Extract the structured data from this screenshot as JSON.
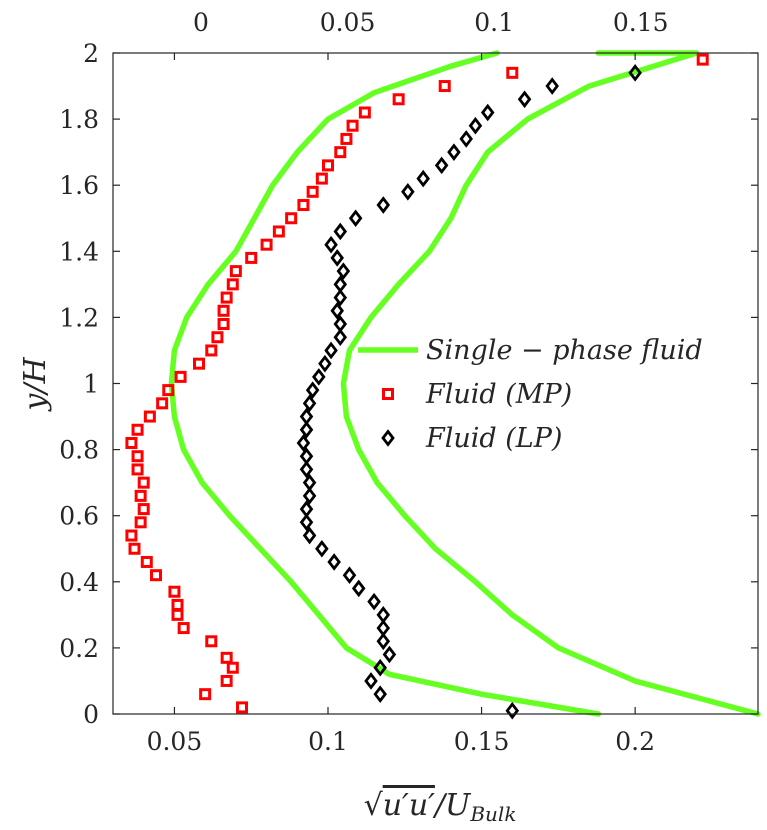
{
  "chart_data": {
    "type": "line",
    "title": "",
    "xlabel": "√(u'u')/U_Bulk",
    "xlabel_parts": {
      "sqrt": "√",
      "num": "u′u′",
      "sep": "/U",
      "sub": "Bulk"
    },
    "ylabel": "y/H",
    "xlim": [
      0.03,
      0.24
    ],
    "ylim": [
      0,
      2
    ],
    "x_ticks": [
      0.05,
      0.1,
      0.15,
      0.2
    ],
    "x_tick_labels": [
      "0.05",
      "0.1",
      "0.15",
      "0.2"
    ],
    "y_ticks": [
      0,
      0.2,
      0.4,
      0.6,
      0.8,
      1,
      1.2,
      1.4,
      1.6,
      1.8,
      2
    ],
    "y_tick_labels": [
      "0",
      "0.2",
      "0.4",
      "0.6",
      "0.8",
      "1",
      "1.2",
      "1.4",
      "1.6",
      "1.8",
      "2"
    ],
    "top_axis": {
      "xlim": [
        -0.03,
        0.19
      ],
      "ticks": [
        0,
        0.05,
        0.1,
        0.15
      ],
      "tick_labels": [
        "0",
        "0.05",
        "0.1",
        "0.15"
      ]
    },
    "legend": {
      "position": "center-right"
    },
    "series": [
      {
        "name": "Single − phase fluid",
        "label_text": "Single − phase fluid",
        "color": "#66ff22",
        "style": "line",
        "lines": [
          {
            "points": [
              [
                0.188,
                0.0
              ],
              [
                0.15,
                0.06
              ],
              [
                0.12,
                0.12
              ],
              [
                0.106,
                0.2
              ],
              [
                0.097,
                0.3
              ],
              [
                0.088,
                0.4
              ],
              [
                0.078,
                0.5
              ],
              [
                0.068,
                0.6
              ],
              [
                0.059,
                0.7
              ],
              [
                0.053,
                0.8
              ],
              [
                0.05,
                0.9
              ],
              [
                0.049,
                1.0
              ],
              [
                0.05,
                1.1
              ],
              [
                0.054,
                1.2
              ],
              [
                0.061,
                1.3
              ],
              [
                0.07,
                1.4
              ],
              [
                0.076,
                1.5
              ],
              [
                0.082,
                1.6
              ],
              [
                0.09,
                1.7
              ],
              [
                0.1,
                1.8
              ],
              [
                0.115,
                1.88
              ],
              [
                0.14,
                1.96
              ],
              [
                0.155,
                2.0
              ]
            ]
          },
          {
            "points": [
              [
                0.24,
                0.0
              ],
              [
                0.2,
                0.1
              ],
              [
                0.175,
                0.2
              ],
              [
                0.16,
                0.3
              ],
              [
                0.148,
                0.4
              ],
              [
                0.135,
                0.5
              ],
              [
                0.125,
                0.6
              ],
              [
                0.116,
                0.7
              ],
              [
                0.11,
                0.8
              ],
              [
                0.106,
                0.9
              ],
              [
                0.105,
                1.0
              ],
              [
                0.107,
                1.1
              ],
              [
                0.114,
                1.2
              ],
              [
                0.123,
                1.3
              ],
              [
                0.133,
                1.4
              ],
              [
                0.14,
                1.5
              ],
              [
                0.145,
                1.6
              ],
              [
                0.152,
                1.7
              ],
              [
                0.165,
                1.8
              ],
              [
                0.185,
                1.9
              ],
              [
                0.22,
                2.0
              ],
              [
                0.188,
                2.0
              ]
            ]
          }
        ]
      },
      {
        "name": "Fluid (MP)",
        "label_text": "Fluid (MP)",
        "color": "#ff0000",
        "style": "square",
        "points": [
          [
            0.072,
            0.02
          ],
          [
            0.06,
            0.06
          ],
          [
            0.067,
            0.1
          ],
          [
            0.069,
            0.14
          ],
          [
            0.067,
            0.17
          ],
          [
            0.062,
            0.22
          ],
          [
            0.053,
            0.26
          ],
          [
            0.051,
            0.3
          ],
          [
            0.051,
            0.33
          ],
          [
            0.05,
            0.37
          ],
          [
            0.044,
            0.42
          ],
          [
            0.041,
            0.46
          ],
          [
            0.037,
            0.5
          ],
          [
            0.036,
            0.54
          ],
          [
            0.039,
            0.58
          ],
          [
            0.04,
            0.62
          ],
          [
            0.039,
            0.66
          ],
          [
            0.04,
            0.7
          ],
          [
            0.038,
            0.74
          ],
          [
            0.038,
            0.78
          ],
          [
            0.036,
            0.82
          ],
          [
            0.038,
            0.86
          ],
          [
            0.042,
            0.9
          ],
          [
            0.046,
            0.94
          ],
          [
            0.048,
            0.98
          ],
          [
            0.052,
            1.02
          ],
          [
            0.058,
            1.06
          ],
          [
            0.062,
            1.1
          ],
          [
            0.064,
            1.14
          ],
          [
            0.066,
            1.18
          ],
          [
            0.066,
            1.22
          ],
          [
            0.067,
            1.26
          ],
          [
            0.069,
            1.3
          ],
          [
            0.07,
            1.34
          ],
          [
            0.075,
            1.38
          ],
          [
            0.08,
            1.42
          ],
          [
            0.084,
            1.46
          ],
          [
            0.088,
            1.5
          ],
          [
            0.092,
            1.54
          ],
          [
            0.095,
            1.58
          ],
          [
            0.098,
            1.62
          ],
          [
            0.1,
            1.66
          ],
          [
            0.104,
            1.7
          ],
          [
            0.106,
            1.74
          ],
          [
            0.108,
            1.78
          ],
          [
            0.112,
            1.82
          ],
          [
            0.123,
            1.86
          ],
          [
            0.138,
            1.9
          ],
          [
            0.16,
            1.94
          ],
          [
            0.222,
            1.98
          ]
        ]
      },
      {
        "name": "Fluid (LP)",
        "label_text": "Fluid (LP)",
        "color": "#000000",
        "style": "diamond",
        "points": [
          [
            0.16,
            0.01
          ],
          [
            0.117,
            0.06
          ],
          [
            0.114,
            0.1
          ],
          [
            0.117,
            0.14
          ],
          [
            0.12,
            0.18
          ],
          [
            0.118,
            0.22
          ],
          [
            0.118,
            0.26
          ],
          [
            0.118,
            0.3
          ],
          [
            0.115,
            0.34
          ],
          [
            0.11,
            0.38
          ],
          [
            0.107,
            0.42
          ],
          [
            0.102,
            0.46
          ],
          [
            0.098,
            0.5
          ],
          [
            0.094,
            0.54
          ],
          [
            0.093,
            0.58
          ],
          [
            0.093,
            0.62
          ],
          [
            0.094,
            0.66
          ],
          [
            0.094,
            0.7
          ],
          [
            0.093,
            0.74
          ],
          [
            0.093,
            0.78
          ],
          [
            0.092,
            0.82
          ],
          [
            0.093,
            0.86
          ],
          [
            0.093,
            0.9
          ],
          [
            0.094,
            0.94
          ],
          [
            0.095,
            0.98
          ],
          [
            0.097,
            1.02
          ],
          [
            0.099,
            1.06
          ],
          [
            0.101,
            1.1
          ],
          [
            0.104,
            1.14
          ],
          [
            0.104,
            1.18
          ],
          [
            0.103,
            1.22
          ],
          [
            0.104,
            1.26
          ],
          [
            0.104,
            1.3
          ],
          [
            0.105,
            1.34
          ],
          [
            0.103,
            1.38
          ],
          [
            0.101,
            1.42
          ],
          [
            0.104,
            1.46
          ],
          [
            0.109,
            1.5
          ],
          [
            0.118,
            1.54
          ],
          [
            0.126,
            1.58
          ],
          [
            0.131,
            1.62
          ],
          [
            0.137,
            1.66
          ],
          [
            0.141,
            1.7
          ],
          [
            0.145,
            1.74
          ],
          [
            0.148,
            1.78
          ],
          [
            0.152,
            1.82
          ],
          [
            0.164,
            1.86
          ],
          [
            0.173,
            1.9
          ],
          [
            0.2,
            1.94
          ]
        ]
      }
    ]
  }
}
